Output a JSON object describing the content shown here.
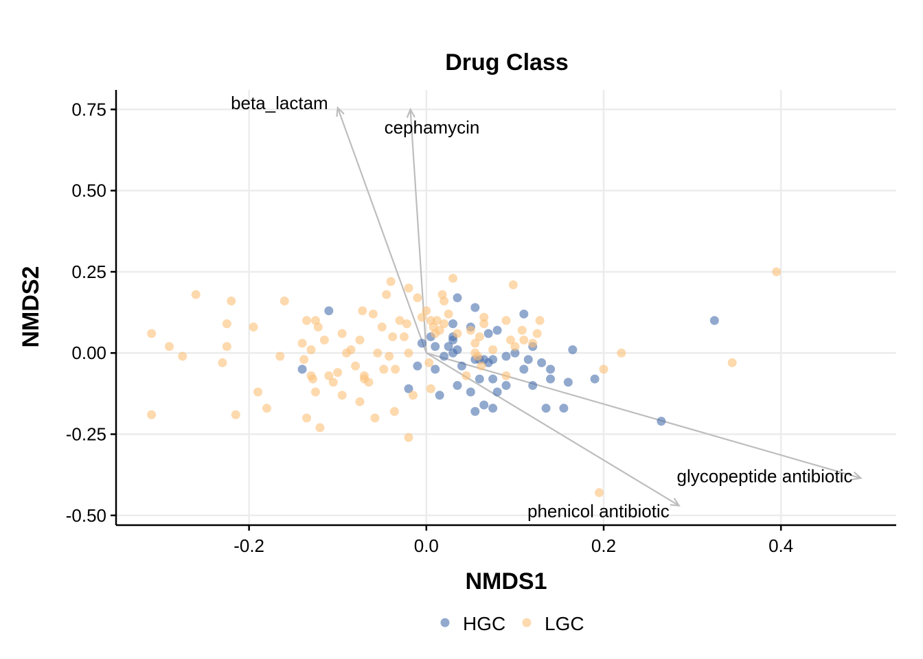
{
  "chart_data": {
    "type": "scatter",
    "title": "Drug Class",
    "xlabel": "NMDS1",
    "ylabel": "NMDS2",
    "xlim": [
      -0.35,
      0.53
    ],
    "ylim": [
      -0.53,
      0.81
    ],
    "x_ticks": [
      -0.2,
      0.0,
      0.2,
      0.4
    ],
    "x_tick_labels": [
      "-0.2",
      "0.0",
      "0.2",
      "0.4"
    ],
    "y_ticks": [
      -0.5,
      -0.25,
      0.0,
      0.25,
      0.5,
      0.75
    ],
    "y_tick_labels": [
      "-0.50",
      "-0.25",
      "0.00",
      "0.25",
      "0.50",
      "0.75"
    ],
    "grid": true,
    "legend_position": "bottom",
    "series": [
      {
        "name": "HGC",
        "color": "#4a6fae",
        "points": [
          [
            -0.11,
            0.13
          ],
          [
            -0.14,
            -0.05
          ],
          [
            -0.005,
            0.03
          ],
          [
            0.005,
            0.05
          ],
          [
            -0.02,
            -0.11
          ],
          [
            -0.01,
            -0.04
          ],
          [
            0.01,
            0.02
          ],
          [
            0.02,
            -0.01
          ],
          [
            0.025,
            0.02
          ],
          [
            0.03,
            0.04
          ],
          [
            0.03,
            0.05
          ],
          [
            0.03,
            0.0
          ],
          [
            0.035,
            0.01
          ],
          [
            0.03,
            0.09
          ],
          [
            0.035,
            0.17
          ],
          [
            0.04,
            -0.04
          ],
          [
            0.015,
            -0.13
          ],
          [
            0.01,
            -0.05
          ],
          [
            0.035,
            -0.1
          ],
          [
            0.05,
            -0.12
          ],
          [
            0.055,
            -0.02
          ],
          [
            0.06,
            -0.02
          ],
          [
            0.065,
            -0.02
          ],
          [
            0.07,
            -0.03
          ],
          [
            0.075,
            -0.02
          ],
          [
            0.06,
            -0.08
          ],
          [
            0.075,
            -0.08
          ],
          [
            0.08,
            -0.12
          ],
          [
            0.055,
            -0.18
          ],
          [
            0.065,
            -0.16
          ],
          [
            0.075,
            -0.17
          ],
          [
            0.05,
            0.08
          ],
          [
            0.055,
            0.14
          ],
          [
            0.07,
            0.06
          ],
          [
            0.08,
            0.07
          ],
          [
            0.09,
            -0.1
          ],
          [
            0.09,
            -0.01
          ],
          [
            0.1,
            0.0
          ],
          [
            0.11,
            0.12
          ],
          [
            0.11,
            -0.05
          ],
          [
            0.115,
            -0.02
          ],
          [
            0.12,
            0.02
          ],
          [
            0.12,
            -0.1
          ],
          [
            0.13,
            -0.03
          ],
          [
            0.14,
            -0.05
          ],
          [
            0.14,
            -0.08
          ],
          [
            0.135,
            -0.17
          ],
          [
            0.155,
            -0.17
          ],
          [
            0.16,
            -0.09
          ],
          [
            0.165,
            0.01
          ],
          [
            0.19,
            -0.08
          ],
          [
            0.265,
            -0.21
          ],
          [
            0.325,
            0.1
          ]
        ]
      },
      {
        "name": "LGC",
        "color": "#fbbf78",
        "points": [
          [
            -0.31,
            0.06
          ],
          [
            -0.29,
            0.02
          ],
          [
            -0.275,
            -0.01
          ],
          [
            -0.31,
            -0.19
          ],
          [
            -0.26,
            0.18
          ],
          [
            -0.23,
            -0.03
          ],
          [
            -0.225,
            0.09
          ],
          [
            -0.225,
            0.02
          ],
          [
            -0.22,
            0.16
          ],
          [
            -0.215,
            -0.19
          ],
          [
            -0.195,
            0.08
          ],
          [
            -0.19,
            -0.12
          ],
          [
            -0.18,
            -0.17
          ],
          [
            -0.165,
            -0.01
          ],
          [
            -0.16,
            0.16
          ],
          [
            -0.14,
            0.03
          ],
          [
            -0.138,
            -0.02
          ],
          [
            -0.135,
            0.1
          ],
          [
            -0.135,
            -0.2
          ],
          [
            -0.13,
            0.01
          ],
          [
            -0.13,
            -0.07
          ],
          [
            -0.128,
            -0.08
          ],
          [
            -0.125,
            0.1
          ],
          [
            -0.125,
            -0.12
          ],
          [
            -0.122,
            0.08
          ],
          [
            -0.12,
            -0.23
          ],
          [
            -0.115,
            0.04
          ],
          [
            -0.11,
            -0.07
          ],
          [
            -0.105,
            -0.09
          ],
          [
            -0.1,
            -0.06
          ],
          [
            -0.095,
            -0.13
          ],
          [
            -0.095,
            0.06
          ],
          [
            -0.09,
            0.0
          ],
          [
            -0.085,
            0.01
          ],
          [
            -0.08,
            -0.04
          ],
          [
            -0.075,
            -0.15
          ],
          [
            -0.075,
            0.04
          ],
          [
            -0.072,
            0.13
          ],
          [
            -0.07,
            -0.07
          ],
          [
            -0.07,
            -0.08
          ],
          [
            -0.065,
            -0.09
          ],
          [
            -0.06,
            0.12
          ],
          [
            -0.058,
            -0.2
          ],
          [
            -0.055,
            0.0
          ],
          [
            -0.05,
            0.08
          ],
          [
            -0.048,
            -0.05
          ],
          [
            -0.045,
            0.18
          ],
          [
            -0.042,
            -0.01
          ],
          [
            -0.04,
            0.22
          ],
          [
            -0.038,
            0.05
          ],
          [
            -0.036,
            -0.18
          ],
          [
            -0.035,
            -0.05
          ],
          [
            -0.03,
            0.1
          ],
          [
            -0.025,
            0.05
          ],
          [
            -0.022,
            0.09
          ],
          [
            -0.02,
            0.0
          ],
          [
            -0.02,
            0.2
          ],
          [
            -0.02,
            -0.26
          ],
          [
            -0.015,
            -0.13
          ],
          [
            -0.01,
            0.17
          ],
          [
            -0.005,
            0.11
          ],
          [
            0.0,
            0.13
          ],
          [
            0.003,
            -0.03
          ],
          [
            0.005,
            -0.11
          ],
          [
            0.005,
            0.1
          ],
          [
            0.008,
            0.08
          ],
          [
            0.01,
            0.06
          ],
          [
            0.012,
            0.1
          ],
          [
            0.015,
            0.07
          ],
          [
            0.018,
            0.18
          ],
          [
            0.02,
            0.16
          ],
          [
            0.02,
            0.09
          ],
          [
            0.025,
            0.12
          ],
          [
            0.03,
            0.23
          ],
          [
            0.035,
            0.06
          ],
          [
            0.045,
            -0.07
          ],
          [
            0.05,
            0.07
          ],
          [
            0.055,
            0.03
          ],
          [
            0.055,
            0.0
          ],
          [
            0.058,
            -0.01
          ],
          [
            0.06,
            0.05
          ],
          [
            0.062,
            -0.04
          ],
          [
            0.065,
            0.11
          ],
          [
            0.065,
            0.09
          ],
          [
            0.075,
            0.01
          ],
          [
            0.09,
            0.1
          ],
          [
            0.09,
            -0.07
          ],
          [
            0.095,
            0.04
          ],
          [
            0.098,
            0.21
          ],
          [
            0.1,
            0.02
          ],
          [
            0.108,
            0.07
          ],
          [
            0.11,
            0.04
          ],
          [
            0.12,
            0.03
          ],
          [
            0.125,
            0.06
          ],
          [
            0.128,
            0.1
          ],
          [
            0.2,
            -0.05
          ],
          [
            0.22,
            0.0
          ],
          [
            0.195,
            -0.43
          ],
          [
            0.345,
            -0.03
          ],
          [
            0.395,
            0.25
          ]
        ]
      }
    ],
    "vectors": [
      {
        "name": "beta_lactam",
        "x": -0.1,
        "y": 0.755
      },
      {
        "name": "cephamycin",
        "x": -0.018,
        "y": 0.75
      },
      {
        "name": "glycopeptide antibiotic",
        "x": 0.49,
        "y": -0.385
      },
      {
        "name": "phenicol antibiotic",
        "x": 0.285,
        "y": -0.47
      }
    ],
    "vector_origin": [
      0.0,
      0.0
    ]
  }
}
